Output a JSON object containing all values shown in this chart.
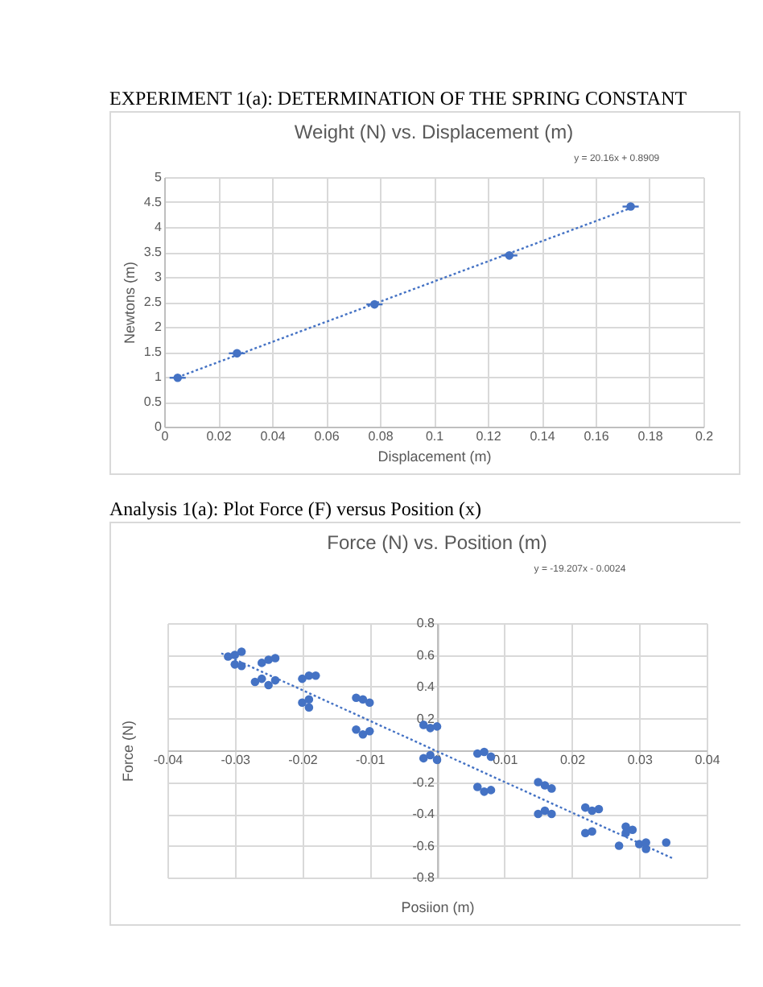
{
  "chart_data": [
    {
      "type": "scatter",
      "title": "Weight (N) vs. Displacement (m)",
      "xlabel": "Displacement (m)",
      "ylabel": "Newtons (m)",
      "annotations": [
        "EXPERIMENT 1(a): DETERMINATION OF THE SPRING CONSTANT",
        "y = 20.16x + 0.8909"
      ],
      "xlim": [
        0,
        0.2
      ],
      "xticks": [
        0,
        0.02,
        0.04,
        0.06,
        0.08,
        0.1,
        0.12,
        0.14,
        0.16,
        0.18,
        0.2
      ],
      "ylim": [
        0,
        5
      ],
      "yticks": [
        0,
        0.5,
        1,
        1.5,
        2,
        2.5,
        3,
        3.5,
        4,
        4.5,
        5
      ],
      "grid": true,
      "marker": "circle",
      "series": [
        {
          "type": "scatter",
          "color": "#4472c4",
          "x": [
            0.005,
            0.027,
            0.078,
            0.128,
            0.173
          ],
          "values": [
            0.98,
            1.47,
            2.45,
            3.43,
            4.41
          ],
          "xerrors": [
            0.003,
            0.003,
            0.003,
            0.003,
            0.003
          ]
        },
        {
          "type": "line",
          "color": "#4472c4",
          "line_style": "dotted",
          "marker": "none",
          "x": [
            0.005,
            0.173
          ],
          "values": [
            0.99,
            4.38
          ]
        }
      ]
    },
    {
      "type": "scatter",
      "title": "Force (N) vs. Position (m)",
      "xlabel": "Posiion (m)",
      "ylabel": "Force (N)",
      "annotations": [
        "Analysis 1(a): Plot Force (F) versus Position (x)",
        "y = -19.207x - 0.0024"
      ],
      "xlim": [
        -0.04,
        0.04
      ],
      "xticks": [
        -0.04,
        -0.03,
        -0.02,
        -0.01,
        0,
        0.01,
        0.02,
        0.03,
        0.04
      ],
      "ylim": [
        -0.8,
        0.8
      ],
      "yticks": [
        -0.8,
        -0.6,
        -0.4,
        -0.2,
        0.2,
        0.4,
        0.6,
        0.8
      ],
      "grid": true,
      "marker": "circle",
      "series": [
        {
          "type": "scatter",
          "color": "#4472c4",
          "x": [
            -0.031,
            -0.03,
            -0.029,
            -0.03,
            -0.029,
            -0.026,
            -0.025,
            -0.024,
            -0.027,
            -0.025,
            -0.026,
            -0.024,
            -0.02,
            -0.019,
            -0.018,
            -0.02,
            -0.019,
            -0.019,
            -0.011,
            -0.01,
            -0.012,
            -0.012,
            -0.011,
            -0.01,
            -0.002,
            -0.001,
            0.0,
            -0.002,
            -0.001,
            0.0,
            0.006,
            0.007,
            0.008,
            0.006,
            0.007,
            0.008,
            0.015,
            0.016,
            0.017,
            0.015,
            0.016,
            0.017,
            0.022,
            0.023,
            0.024,
            0.022,
            0.023,
            0.028,
            0.029,
            0.028,
            0.027,
            0.03,
            0.031,
            0.031,
            0.034
          ],
          "values": [
            0.59,
            0.6,
            0.62,
            0.54,
            0.53,
            0.55,
            0.57,
            0.58,
            0.43,
            0.41,
            0.45,
            0.44,
            0.45,
            0.47,
            0.47,
            0.3,
            0.27,
            0.32,
            0.32,
            0.3,
            0.33,
            0.13,
            0.1,
            0.12,
            0.16,
            0.14,
            0.15,
            -0.05,
            -0.03,
            -0.06,
            -0.02,
            -0.01,
            -0.04,
            -0.23,
            -0.26,
            -0.25,
            -0.2,
            -0.22,
            -0.24,
            -0.4,
            -0.38,
            -0.4,
            -0.36,
            -0.38,
            -0.37,
            -0.52,
            -0.51,
            -0.48,
            -0.5,
            -0.52,
            -0.6,
            -0.59,
            -0.62,
            -0.58,
            -0.58
          ]
        },
        {
          "type": "line",
          "color": "#4472c4",
          "line_style": "dotted",
          "marker": "none",
          "x": [
            -0.032,
            0.035
          ],
          "values": [
            0.61,
            -0.68
          ]
        }
      ]
    }
  ]
}
